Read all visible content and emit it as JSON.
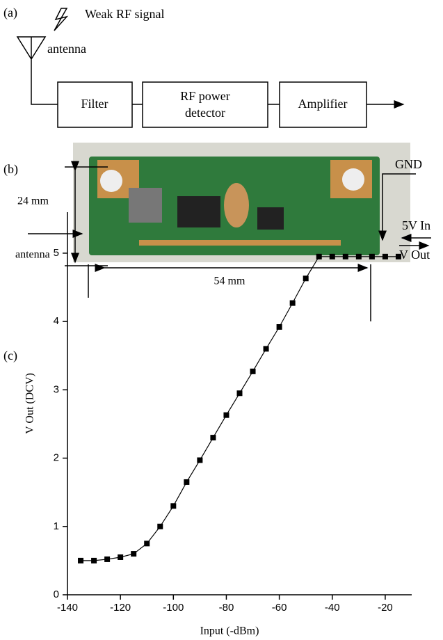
{
  "panel_a": {
    "label": "(a)",
    "signal": "Weak RF signal",
    "antenna": "antenna",
    "blocks": [
      "Filter",
      [
        "RF power",
        "detector"
      ],
      "Amplifier"
    ]
  },
  "panel_b": {
    "label": "(b)",
    "gnd": "GND",
    "height": "24 mm",
    "power_in": "5V In",
    "antenna": "antenna",
    "v_out": "V Out",
    "width": "54 mm"
  },
  "chart_data": {
    "type": "line",
    "panel_label": "(c)",
    "x_label": "Input (-dBm)",
    "y_label": "V Out (DCV)",
    "x": [
      -135,
      -130,
      -125,
      -120,
      -115,
      -110,
      -105,
      -100,
      -95,
      -90,
      -85,
      -80,
      -75,
      -70,
      -65,
      -60,
      -55,
      -50,
      -45,
      -40,
      -35,
      -30,
      -25,
      -20,
      -15
    ],
    "values": [
      0.5,
      0.5,
      0.52,
      0.55,
      0.6,
      0.75,
      1.0,
      1.3,
      1.65,
      1.97,
      2.3,
      2.63,
      2.95,
      3.27,
      3.6,
      3.92,
      4.27,
      4.63,
      4.95,
      4.95,
      4.95,
      4.95,
      4.95,
      4.95,
      4.95
    ],
    "color": "#000000",
    "xlim": [
      -140,
      -10
    ],
    "xticks": [
      -140,
      -120,
      -100,
      -80,
      -60,
      -40,
      -20
    ],
    "ylim": [
      0,
      5.6
    ],
    "yticks": [
      0,
      1,
      2,
      3,
      4,
      5
    ]
  }
}
